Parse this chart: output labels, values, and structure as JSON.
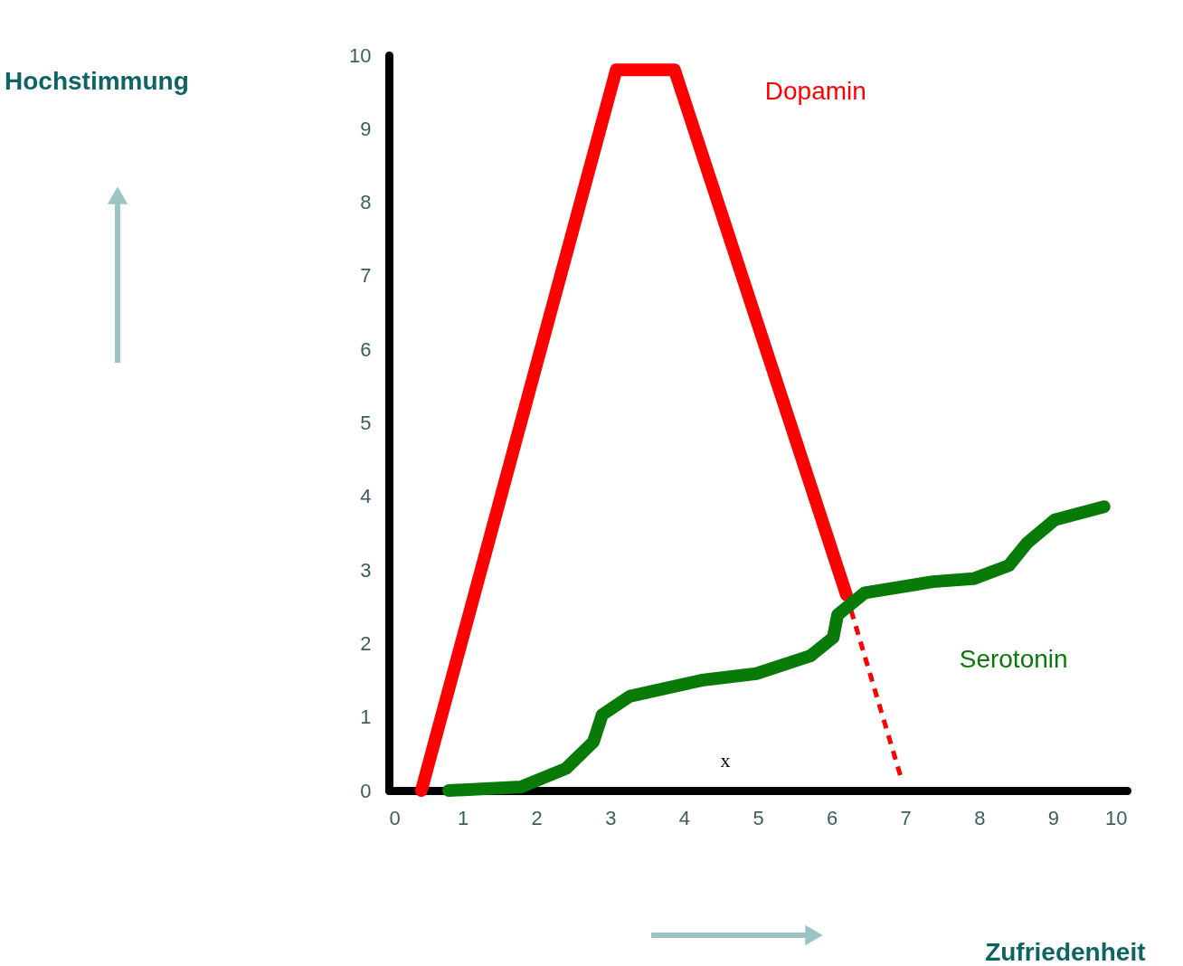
{
  "chart_data": {
    "type": "line",
    "xlabel": "Zufriedenheit",
    "xlim": [
      0,
      10
    ],
    "ylim": [
      0,
      10
    ],
    "xticks": [
      0,
      1,
      2,
      3,
      4,
      5,
      6,
      7,
      8,
      9,
      10
    ],
    "yticks": [
      0,
      1,
      2,
      3,
      4,
      5,
      6,
      7,
      8,
      9,
      10
    ],
    "grid": false,
    "marker": "none",
    "series": [
      {
        "name": "Dopamin",
        "color": "#ff0000",
        "line_style": "solid",
        "x": [
          0.44,
          3.08,
          3.87,
          6.2
        ],
        "values": [
          0,
          9.8,
          9.8,
          2.66
        ]
      },
      {
        "color": "#ff0000",
        "line_style": "dashed",
        "x": [
          6.2,
          6.94
        ],
        "values": [
          2.66,
          0.17
        ]
      },
      {
        "name": "Serotonin",
        "color": "#087a08",
        "line_style": "solid",
        "x": [
          0.81,
          1.79,
          2.4,
          2.77,
          2.89,
          3.26,
          4.24,
          4.98,
          5.71,
          6.02,
          6.08,
          6.45,
          7.37,
          7.92,
          8.4,
          8.65,
          9.02,
          9.69
        ],
        "values": [
          0,
          0.05,
          0.3,
          0.66,
          1.03,
          1.28,
          1.5,
          1.59,
          1.83,
          2.08,
          2.39,
          2.69,
          2.84,
          2.88,
          3.06,
          3.37,
          3.68,
          3.86
        ]
      }
    ],
    "annotations": [
      "x",
      "Hochstimmung"
    ]
  }
}
